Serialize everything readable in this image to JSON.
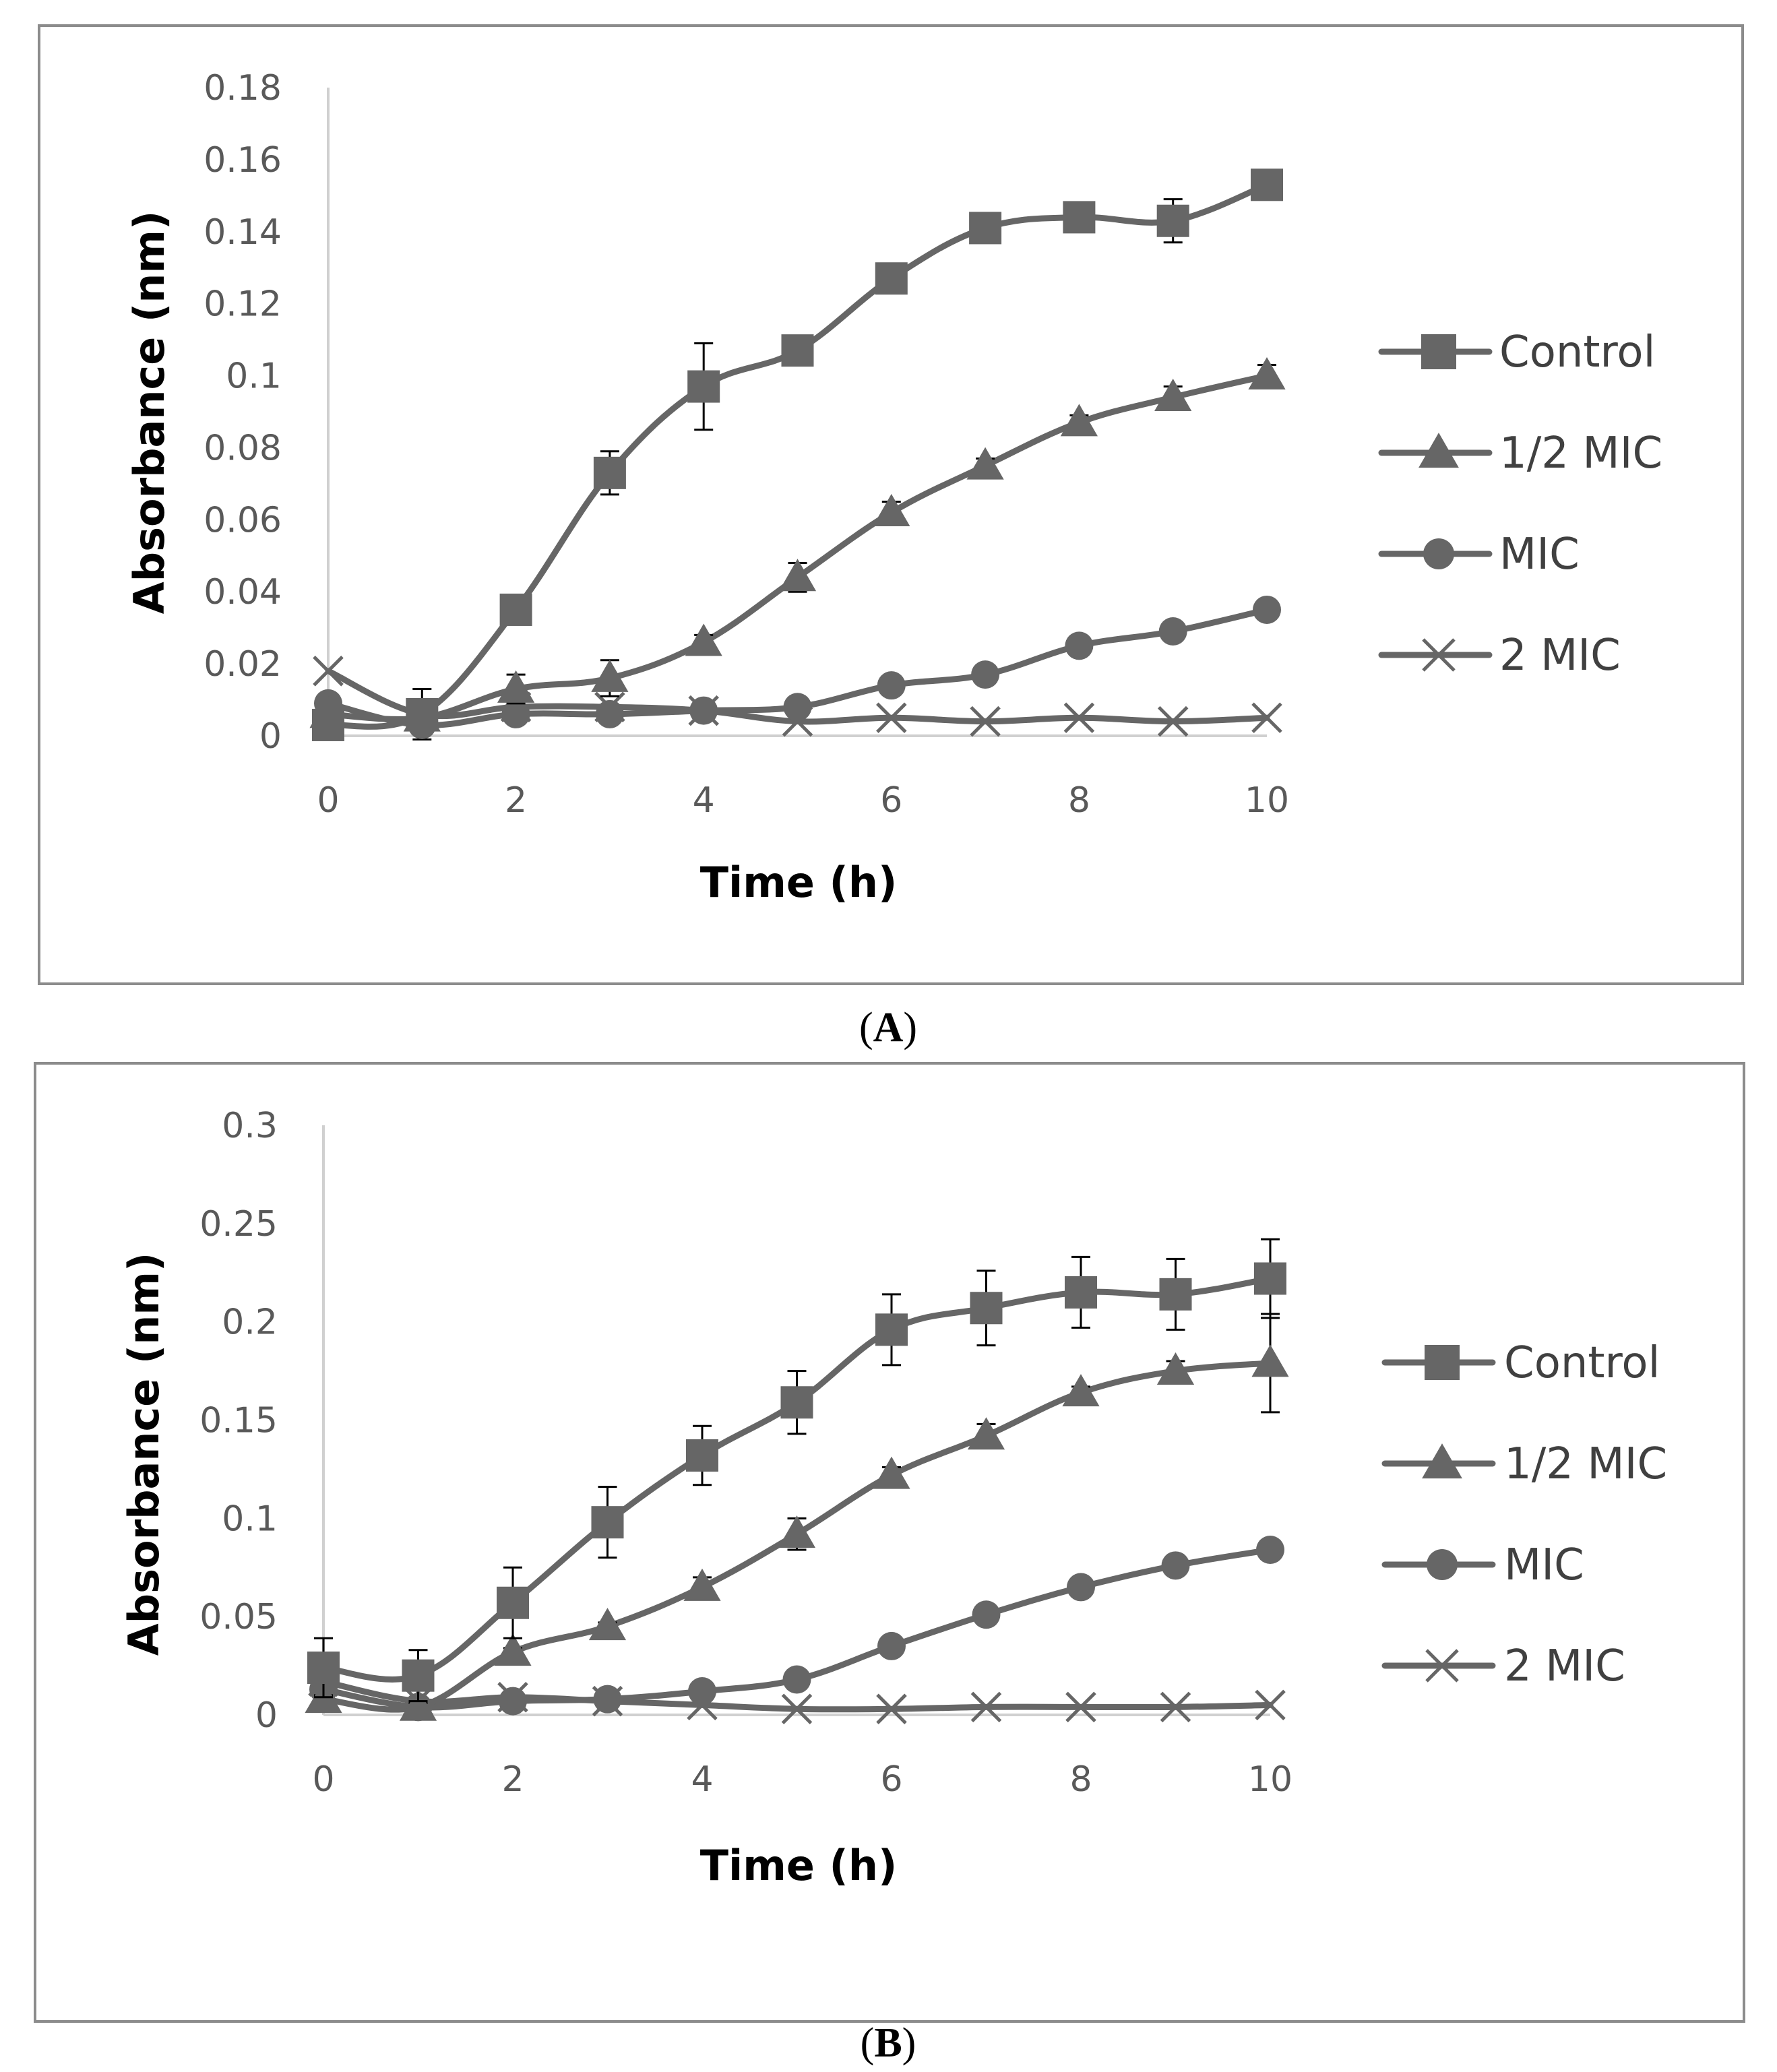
{
  "chart_data": [
    {
      "type": "line",
      "panel_label": "A",
      "xlabel": "Time (h)",
      "ylabel": "Absorbance (nm)",
      "xlim": [
        0,
        10
      ],
      "ylim": [
        0,
        0.18
      ],
      "xticks": [
        "0",
        "2",
        "4",
        "6",
        "8",
        "10"
      ],
      "yticks": [
        "0",
        "0.02",
        "0.04",
        "0.06",
        "0.08",
        "0.1",
        "0.12",
        "0.14",
        "0.16",
        "0.18"
      ],
      "x": [
        0,
        1,
        2,
        3,
        4,
        5,
        6,
        7,
        8,
        9,
        10
      ],
      "legend_position": "right",
      "series": [
        {
          "name": "Control",
          "marker": "square",
          "values": [
            0.003,
            0.006,
            0.035,
            0.073,
            0.097,
            0.107,
            0.127,
            0.141,
            0.144,
            0.143,
            0.153
          ],
          "errors": [
            0.001,
            0.002,
            0.002,
            0.006,
            0.012,
            0.002,
            0.002,
            0.002,
            0.002,
            0.006,
            0.002
          ]
        },
        {
          "name": "1/2 MIC",
          "marker": "triangle",
          "values": [
            0.006,
            0.005,
            0.013,
            0.016,
            0.026,
            0.044,
            0.062,
            0.075,
            0.087,
            0.094,
            0.1
          ],
          "errors": [
            0.001,
            0.001,
            0.004,
            0.005,
            0.002,
            0.004,
            0.003,
            0.002,
            0.002,
            0.003,
            0.003
          ]
        },
        {
          "name": "MIC",
          "marker": "circle",
          "values": [
            0.009,
            0.003,
            0.006,
            0.006,
            0.007,
            0.008,
            0.014,
            0.017,
            0.025,
            0.029,
            0.035
          ],
          "errors": [
            0.001,
            0.001,
            0.001,
            0.001,
            0.001,
            0.001,
            0.001,
            0.001,
            0.001,
            0.001,
            0.001
          ]
        },
        {
          "name": "2 MIC",
          "marker": "x",
          "values": [
            0.018,
            0.006,
            0.008,
            0.008,
            0.007,
            0.004,
            0.005,
            0.004,
            0.005,
            0.004,
            0.005
          ],
          "errors": [
            0.001,
            0.007,
            0.001,
            0.001,
            0.001,
            0.001,
            0.001,
            0.001,
            0.001,
            0.001,
            0.001
          ]
        }
      ]
    },
    {
      "type": "line",
      "panel_label": "B",
      "xlabel": "Time (h)",
      "ylabel": "Absorbance (nm)",
      "xlim": [
        0,
        10
      ],
      "ylim": [
        0,
        0.3
      ],
      "xticks": [
        "0",
        "2",
        "4",
        "6",
        "8",
        "10"
      ],
      "yticks": [
        "0",
        "0.05",
        "0.1",
        "0.15",
        "0.2",
        "0.25",
        "0.3"
      ],
      "x": [
        0,
        1,
        2,
        3,
        4,
        5,
        6,
        7,
        8,
        9,
        10
      ],
      "legend_position": "right",
      "series": [
        {
          "name": "Control",
          "marker": "square",
          "values": [
            0.024,
            0.02,
            0.057,
            0.098,
            0.132,
            0.159,
            0.196,
            0.207,
            0.215,
            0.214,
            0.222
          ],
          "errors": [
            0.015,
            0.013,
            0.018,
            0.018,
            0.015,
            0.016,
            0.018,
            0.019,
            0.018,
            0.018,
            0.02
          ]
        },
        {
          "name": "1/2 MIC",
          "marker": "triangle",
          "values": [
            0.008,
            0.004,
            0.032,
            0.045,
            0.065,
            0.092,
            0.122,
            0.142,
            0.164,
            0.175,
            0.179
          ],
          "errors": [
            0.002,
            0.002,
            0.002,
            0.002,
            0.005,
            0.008,
            0.004,
            0.006,
            0.003,
            0.005,
            0.025
          ]
        },
        {
          "name": "MIC",
          "marker": "circle",
          "values": [
            0.013,
            0.004,
            0.007,
            0.008,
            0.012,
            0.018,
            0.035,
            0.051,
            0.065,
            0.076,
            0.084
          ],
          "errors": [
            0.002,
            0.001,
            0.001,
            0.001,
            0.001,
            0.001,
            0.001,
            0.001,
            0.001,
            0.001,
            0.001
          ]
        },
        {
          "name": "2 MIC",
          "marker": "x",
          "values": [
            0.017,
            0.007,
            0.009,
            0.007,
            0.005,
            0.003,
            0.003,
            0.004,
            0.004,
            0.004,
            0.005
          ],
          "errors": [
            0.002,
            0.001,
            0.001,
            0.001,
            0.001,
            0.001,
            0.001,
            0.001,
            0.001,
            0.001,
            0.001
          ]
        }
      ]
    }
  ],
  "style": {
    "series_color": "#666666",
    "axis_color": "#d0d0d0",
    "frame_color": "#8c8c8c",
    "error_bar_color": "#000000"
  }
}
